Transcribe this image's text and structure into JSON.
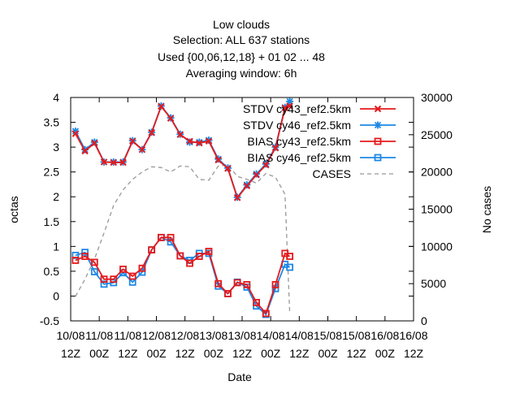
{
  "chart_data": {
    "type": "line",
    "title_lines": [
      "Low clouds",
      "Selection: ALL    637 stations",
      "Used {00,06,12,18} + 01 02 ... 48",
      "Averaging window:  6h"
    ],
    "xlabel": "Date",
    "ylabel": "octas",
    "y2label": "No cases",
    "xlim": [
      0,
      36
    ],
    "ylim": [
      -0.5,
      4
    ],
    "y2lim": [
      0,
      30000
    ],
    "x_ticks": [
      {
        "x": 0,
        "line1": "10/08",
        "line2": "12Z"
      },
      {
        "x": 3,
        "line1": "11/08",
        "line2": "00Z"
      },
      {
        "x": 6,
        "line1": "11/08",
        "line2": "12Z"
      },
      {
        "x": 9,
        "line1": "12/08",
        "line2": "00Z"
      },
      {
        "x": 12,
        "line1": "12/08",
        "line2": "12Z"
      },
      {
        "x": 15,
        "line1": "13/08",
        "line2": "00Z"
      },
      {
        "x": 18,
        "line1": "13/08",
        "line2": "12Z"
      },
      {
        "x": 21,
        "line1": "14/08",
        "line2": "00Z"
      },
      {
        "x": 24,
        "line1": "14/08",
        "line2": "12Z"
      },
      {
        "x": 27,
        "line1": "15/08",
        "line2": "00Z"
      },
      {
        "x": 30,
        "line1": "15/08",
        "line2": "12Z"
      },
      {
        "x": 33,
        "line1": "16/08",
        "line2": "00Z"
      },
      {
        "x": 36,
        "line1": "16/08",
        "line2": "12Z"
      }
    ],
    "y_ticks": [
      "-0.5",
      "0",
      "0.5",
      "1",
      "1.5",
      "2",
      "2.5",
      "3",
      "3.5",
      "4"
    ],
    "y2_ticks": [
      "0",
      "5000",
      "10000",
      "15000",
      "20000",
      "25000",
      "30000"
    ],
    "grid": false,
    "legend_position": "top-right",
    "series": [
      {
        "name": "STDV cy43_ref2.5km",
        "color": "#e41a1c",
        "marker": "x",
        "values": [
          [
            0.5,
            3.27
          ],
          [
            1.5,
            2.92
          ],
          [
            2.5,
            3.08
          ],
          [
            3.5,
            2.7
          ],
          [
            4.5,
            2.69
          ],
          [
            5.5,
            2.69
          ],
          [
            6.5,
            3.12
          ],
          [
            7.5,
            2.95
          ],
          [
            8.5,
            3.29
          ],
          [
            9.5,
            3.82
          ],
          [
            10.5,
            3.58
          ],
          [
            11.5,
            3.25
          ],
          [
            12.5,
            3.12
          ],
          [
            13.5,
            3.08
          ],
          [
            14.5,
            3.12
          ],
          [
            15.5,
            2.74
          ],
          [
            16.5,
            2.57
          ],
          [
            17.5,
            1.98
          ],
          [
            18.5,
            2.22
          ],
          [
            19.5,
            2.44
          ],
          [
            20.5,
            2.64
          ],
          [
            21.5,
            2.98
          ],
          [
            22.5,
            3.79
          ],
          [
            23.0,
            3.83
          ]
        ]
      },
      {
        "name": "STDV cy46_ref2.5km",
        "color": "#1e88e5",
        "marker": "*",
        "values": [
          [
            0.5,
            3.32
          ],
          [
            1.5,
            2.95
          ],
          [
            2.5,
            3.1
          ],
          [
            3.5,
            2.7
          ],
          [
            4.5,
            2.7
          ],
          [
            5.5,
            2.7
          ],
          [
            6.5,
            3.13
          ],
          [
            7.5,
            2.95
          ],
          [
            8.5,
            3.3
          ],
          [
            9.5,
            3.83
          ],
          [
            10.5,
            3.59
          ],
          [
            11.5,
            3.26
          ],
          [
            12.5,
            3.1
          ],
          [
            13.5,
            3.1
          ],
          [
            14.5,
            3.14
          ],
          [
            15.5,
            2.76
          ],
          [
            16.5,
            2.58
          ],
          [
            17.5,
            1.99
          ],
          [
            18.5,
            2.24
          ],
          [
            19.5,
            2.46
          ],
          [
            20.5,
            2.66
          ],
          [
            21.5,
            3.0
          ],
          [
            22.5,
            3.8
          ],
          [
            23.0,
            3.92
          ]
        ]
      },
      {
        "name": "BIAS cy43_ref2.5km",
        "color": "#e41a1c",
        "marker": "square",
        "values": [
          [
            0.5,
            0.72
          ],
          [
            1.5,
            0.8
          ],
          [
            2.5,
            0.68
          ],
          [
            3.5,
            0.34
          ],
          [
            4.5,
            0.34
          ],
          [
            5.5,
            0.54
          ],
          [
            6.5,
            0.4
          ],
          [
            7.5,
            0.56
          ],
          [
            8.5,
            0.93
          ],
          [
            9.5,
            1.18
          ],
          [
            10.5,
            1.18
          ],
          [
            11.5,
            0.81
          ],
          [
            12.5,
            0.66
          ],
          [
            13.5,
            0.8
          ],
          [
            14.5,
            0.9
          ],
          [
            15.5,
            0.25
          ],
          [
            16.5,
            0.05
          ],
          [
            17.5,
            0.27
          ],
          [
            18.5,
            0.23
          ],
          [
            19.5,
            -0.13
          ],
          [
            20.5,
            -0.35
          ],
          [
            21.5,
            0.23
          ],
          [
            22.5,
            0.86
          ],
          [
            23.0,
            0.8
          ]
        ]
      },
      {
        "name": "BIAS cy46_ref2.5km",
        "color": "#1e88e5",
        "marker": "square",
        "values": [
          [
            0.5,
            0.82
          ],
          [
            1.5,
            0.88
          ],
          [
            2.5,
            0.49
          ],
          [
            3.5,
            0.24
          ],
          [
            4.5,
            0.27
          ],
          [
            5.5,
            0.47
          ],
          [
            6.5,
            0.28
          ],
          [
            7.5,
            0.48
          ],
          [
            8.5,
            0.93
          ],
          [
            9.5,
            1.18
          ],
          [
            10.5,
            1.09
          ],
          [
            11.5,
            0.81
          ],
          [
            12.5,
            0.72
          ],
          [
            13.5,
            0.86
          ],
          [
            14.5,
            0.86
          ],
          [
            15.5,
            0.2
          ],
          [
            16.5,
            0.05
          ],
          [
            17.5,
            0.28
          ],
          [
            18.5,
            0.18
          ],
          [
            19.5,
            -0.2
          ],
          [
            20.5,
            -0.37
          ],
          [
            21.5,
            0.15
          ],
          [
            22.5,
            0.64
          ],
          [
            23.0,
            0.58
          ]
        ]
      },
      {
        "name": "CASES",
        "color": "#999999",
        "dashed": true,
        "axis": "y2",
        "values": [
          [
            0.5,
            3300
          ],
          [
            1.5,
            5600
          ],
          [
            2.5,
            8300
          ],
          [
            3.5,
            11800
          ],
          [
            4.5,
            15500
          ],
          [
            5.5,
            17600
          ],
          [
            6.5,
            19000
          ],
          [
            7.5,
            20000
          ],
          [
            8.5,
            20700
          ],
          [
            9.5,
            20600
          ],
          [
            10.5,
            20000
          ],
          [
            11.5,
            20800
          ],
          [
            12.5,
            20700
          ],
          [
            13.5,
            19000
          ],
          [
            14.5,
            18900
          ],
          [
            15.5,
            20800
          ],
          [
            16.5,
            21000
          ],
          [
            17.5,
            19400
          ],
          [
            18.5,
            19000
          ],
          [
            19.5,
            18500
          ],
          [
            20.5,
            19800
          ],
          [
            21.5,
            19300
          ],
          [
            22.5,
            17000
          ],
          [
            23.0,
            1000
          ]
        ]
      }
    ]
  }
}
